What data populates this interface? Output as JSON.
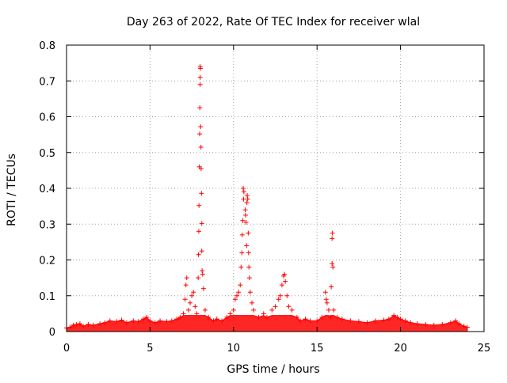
{
  "chart_data": {
    "type": "scatter",
    "title": "Day 263 of 2022, Rate Of TEC Index for receiver wlal",
    "xlabel": "GPS time / hours",
    "ylabel": "ROTI / TECUs",
    "xlim": [
      0,
      25
    ],
    "ylim": [
      0,
      0.8
    ],
    "xticks": [
      0,
      5,
      10,
      15,
      20,
      25
    ],
    "xtick_labels": [
      "0",
      "5",
      "10",
      "15",
      "20",
      "25"
    ],
    "yticks": [
      0,
      0.1,
      0.2,
      0.3,
      0.4,
      0.5,
      0.6,
      0.7,
      0.8
    ],
    "ytick_labels": [
      "0",
      "0.1",
      "0.2",
      "0.3",
      "0.4",
      "0.5",
      "0.6",
      "0.7",
      "0.8"
    ],
    "grid": true,
    "marker": "+",
    "colors": {
      "points": "#ff0000",
      "grid": "#a0a0a0",
      "frame": "#000000"
    },
    "series": [
      {
        "points": [
          [
            0.0,
            0.01
          ],
          [
            0.2,
            0.012
          ],
          [
            0.4,
            0.018
          ],
          [
            0.6,
            0.02
          ],
          [
            0.8,
            0.022
          ],
          [
            1.0,
            0.015
          ],
          [
            1.3,
            0.02
          ],
          [
            1.6,
            0.018
          ],
          [
            2.0,
            0.022
          ],
          [
            2.3,
            0.025
          ],
          [
            2.6,
            0.03
          ],
          [
            3.0,
            0.028
          ],
          [
            3.3,
            0.032
          ],
          [
            3.6,
            0.025
          ],
          [
            4.0,
            0.03
          ],
          [
            4.3,
            0.028
          ],
          [
            4.6,
            0.035
          ],
          [
            4.8,
            0.04
          ],
          [
            5.0,
            0.03
          ],
          [
            5.3,
            0.025
          ],
          [
            5.6,
            0.03
          ],
          [
            6.0,
            0.028
          ],
          [
            6.3,
            0.03
          ],
          [
            6.6,
            0.035
          ],
          [
            6.8,
            0.04
          ],
          [
            7.0,
            0.05
          ],
          [
            7.1,
            0.09
          ],
          [
            7.15,
            0.13
          ],
          [
            7.2,
            0.15
          ],
          [
            7.3,
            0.06
          ],
          [
            7.4,
            0.08
          ],
          [
            7.5,
            0.1
          ],
          [
            7.6,
            0.11
          ],
          [
            7.7,
            0.07
          ],
          [
            7.8,
            0.05
          ],
          [
            7.88,
            0.15
          ],
          [
            7.9,
            0.215
          ],
          [
            7.92,
            0.28
          ],
          [
            7.93,
            0.352
          ],
          [
            7.95,
            0.46
          ],
          [
            7.97,
            0.552
          ],
          [
            7.98,
            0.625
          ],
          [
            8.0,
            0.69
          ],
          [
            8.0,
            0.71
          ],
          [
            8.02,
            0.735
          ],
          [
            8.0,
            0.74
          ],
          [
            8.03,
            0.572
          ],
          [
            8.05,
            0.515
          ],
          [
            8.06,
            0.455
          ],
          [
            8.08,
            0.386
          ],
          [
            8.1,
            0.302
          ],
          [
            8.1,
            0.225
          ],
          [
            8.12,
            0.17
          ],
          [
            8.15,
            0.16
          ],
          [
            8.2,
            0.12
          ],
          [
            8.3,
            0.06
          ],
          [
            8.5,
            0.04
          ],
          [
            8.8,
            0.03
          ],
          [
            9.0,
            0.035
          ],
          [
            9.3,
            0.03
          ],
          [
            9.6,
            0.04
          ],
          [
            9.8,
            0.05
          ],
          [
            10.0,
            0.06
          ],
          [
            10.1,
            0.09
          ],
          [
            10.2,
            0.1
          ],
          [
            10.3,
            0.11
          ],
          [
            10.4,
            0.13
          ],
          [
            10.45,
            0.18
          ],
          [
            10.5,
            0.22
          ],
          [
            10.52,
            0.27
          ],
          [
            10.55,
            0.31
          ],
          [
            10.6,
            0.37
          ],
          [
            10.58,
            0.4
          ],
          [
            10.62,
            0.39
          ],
          [
            10.7,
            0.34
          ],
          [
            10.72,
            0.325
          ],
          [
            10.75,
            0.305
          ],
          [
            10.78,
            0.24
          ],
          [
            10.8,
            0.36
          ],
          [
            10.82,
            0.38
          ],
          [
            10.85,
            0.37
          ],
          [
            10.88,
            0.275
          ],
          [
            10.9,
            0.22
          ],
          [
            10.92,
            0.18
          ],
          [
            10.95,
            0.15
          ],
          [
            11.0,
            0.11
          ],
          [
            11.1,
            0.08
          ],
          [
            11.2,
            0.06
          ],
          [
            11.5,
            0.04
          ],
          [
            11.8,
            0.05
          ],
          [
            12.0,
            0.04
          ],
          [
            12.3,
            0.06
          ],
          [
            12.5,
            0.07
          ],
          [
            12.7,
            0.09
          ],
          [
            12.8,
            0.1
          ],
          [
            12.9,
            0.13
          ],
          [
            13.0,
            0.155
          ],
          [
            13.05,
            0.16
          ],
          [
            13.1,
            0.14
          ],
          [
            13.2,
            0.1
          ],
          [
            13.3,
            0.07
          ],
          [
            13.5,
            0.06
          ],
          [
            13.8,
            0.04
          ],
          [
            14.0,
            0.03
          ],
          [
            14.3,
            0.035
          ],
          [
            14.6,
            0.03
          ],
          [
            15.0,
            0.03
          ],
          [
            15.3,
            0.04
          ],
          [
            15.5,
            0.11
          ],
          [
            15.55,
            0.09
          ],
          [
            15.6,
            0.08
          ],
          [
            15.7,
            0.06
          ],
          [
            15.8,
            0.04
          ],
          [
            15.85,
            0.125
          ],
          [
            15.9,
            0.19
          ],
          [
            15.9,
            0.26
          ],
          [
            15.92,
            0.275
          ],
          [
            15.95,
            0.18
          ],
          [
            16.0,
            0.06
          ],
          [
            16.2,
            0.04
          ],
          [
            16.5,
            0.035
          ],
          [
            17.0,
            0.03
          ],
          [
            17.5,
            0.028
          ],
          [
            18.0,
            0.025
          ],
          [
            18.5,
            0.03
          ],
          [
            19.0,
            0.032
          ],
          [
            19.3,
            0.035
          ],
          [
            19.6,
            0.045
          ],
          [
            19.8,
            0.04
          ],
          [
            20.0,
            0.035
          ],
          [
            20.3,
            0.03
          ],
          [
            20.6,
            0.025
          ],
          [
            21.0,
            0.022
          ],
          [
            21.5,
            0.02
          ],
          [
            22.0,
            0.018
          ],
          [
            22.5,
            0.02
          ],
          [
            23.0,
            0.025
          ],
          [
            23.3,
            0.03
          ],
          [
            23.5,
            0.022
          ],
          [
            23.8,
            0.015
          ],
          [
            24.0,
            0.012
          ]
        ]
      }
    ]
  }
}
